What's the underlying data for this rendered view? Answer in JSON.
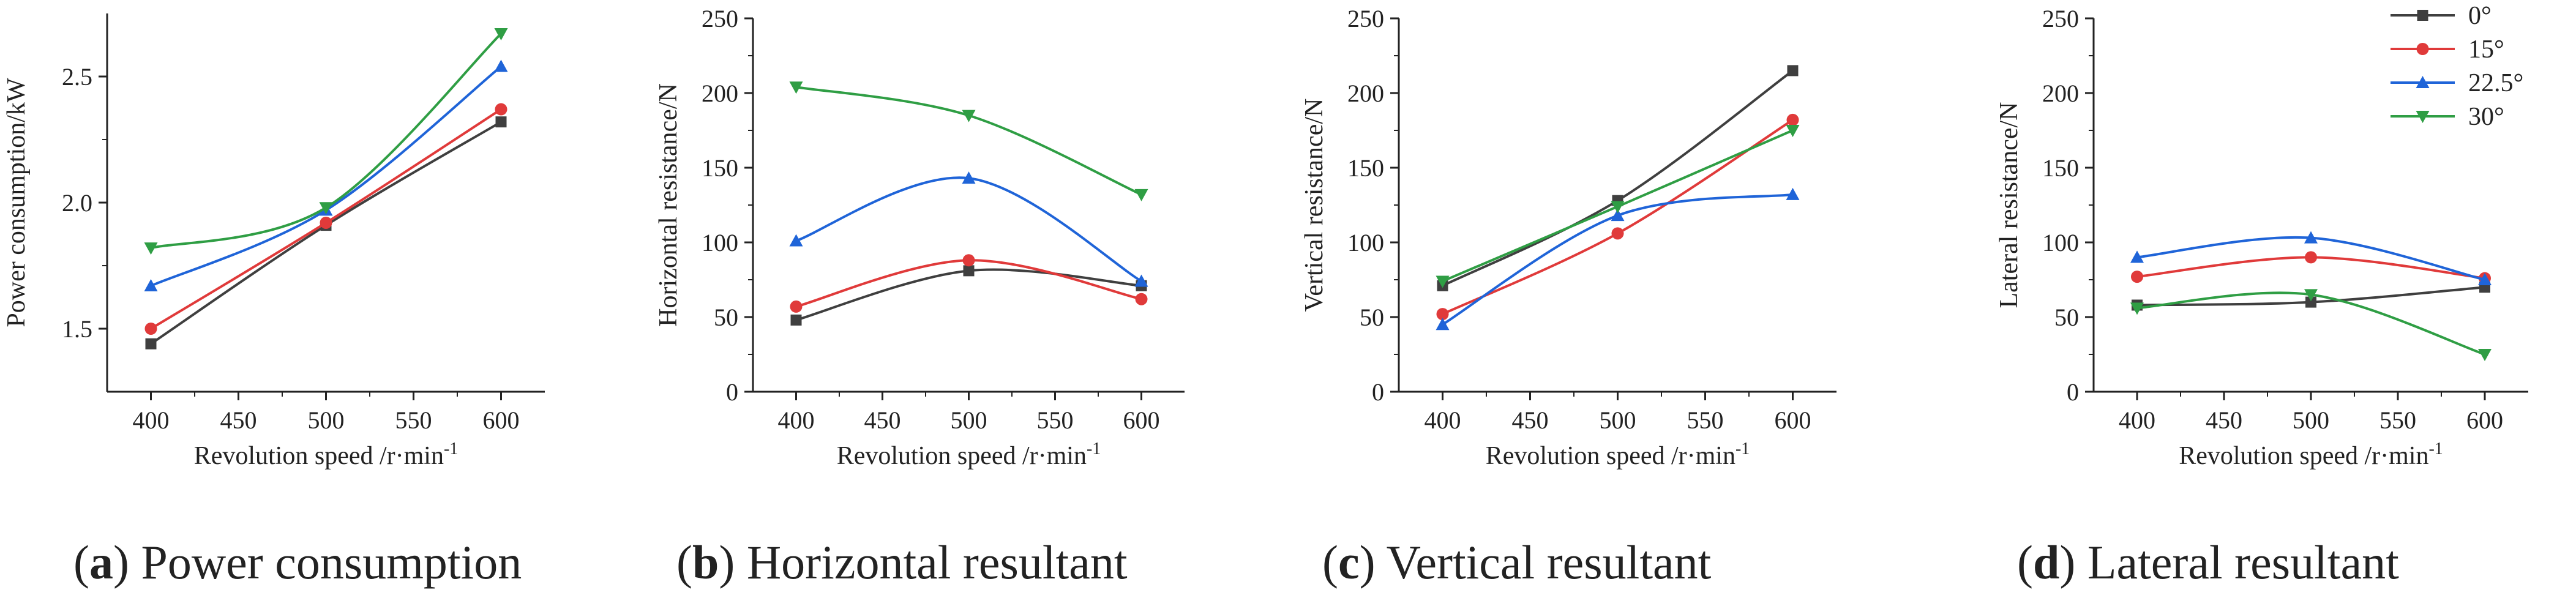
{
  "legend": [
    {
      "label": "0°",
      "color": "#3f3f3f",
      "marker": "square"
    },
    {
      "label": "15°",
      "color": "#e03a3a",
      "marker": "circle"
    },
    {
      "label": "22.5°",
      "color": "#1f64d8",
      "marker": "triangle-up"
    },
    {
      "label": "30°",
      "color": "#2f9e44",
      "marker": "triangle-down"
    }
  ],
  "chart_data": [
    {
      "type": "line",
      "caption_letter": "a",
      "caption_text": " Power consumption",
      "xlabel": "Revolution speed /r·min",
      "xlabel_sup": "-1",
      "ylabel": "Power consumption/kW",
      "x": [
        400,
        500,
        600
      ],
      "xticks": [
        "400",
        "450",
        "500",
        "550",
        "600"
      ],
      "xlim": [
        375,
        625
      ],
      "ylim": [
        1.25,
        2.75
      ],
      "yticks": [
        "1.5",
        "2.0",
        "2.5"
      ],
      "ytick_values": [
        1.5,
        2.0,
        2.5
      ],
      "series": [
        {
          "name": "0°",
          "values": [
            1.44,
            1.91,
            2.32
          ]
        },
        {
          "name": "15°",
          "values": [
            1.5,
            1.92,
            2.37
          ]
        },
        {
          "name": "22.5°",
          "values": [
            1.67,
            1.97,
            2.54
          ]
        },
        {
          "name": "30°",
          "values": [
            1.82,
            1.98,
            2.67
          ]
        }
      ]
    },
    {
      "type": "line",
      "caption_letter": "b",
      "caption_text": " Horizontal resultant",
      "xlabel": "Revolution speed /r·min",
      "xlabel_sup": "-1",
      "ylabel": "Horizontal resistance/N",
      "x": [
        400,
        500,
        600
      ],
      "xticks": [
        "400",
        "450",
        "500",
        "550",
        "600"
      ],
      "xlim": [
        375,
        625
      ],
      "ylim": [
        0,
        250
      ],
      "yticks": [
        "0",
        "50",
        "100",
        "150",
        "200",
        "250"
      ],
      "ytick_values": [
        0,
        50,
        100,
        150,
        200,
        250
      ],
      "series": [
        {
          "name": "0°",
          "values": [
            48,
            81,
            71
          ]
        },
        {
          "name": "15°",
          "values": [
            57,
            88,
            62
          ]
        },
        {
          "name": "22.5°",
          "values": [
            101,
            143,
            74
          ]
        },
        {
          "name": "30°",
          "values": [
            204,
            185,
            132
          ]
        }
      ]
    },
    {
      "type": "line",
      "caption_letter": "c",
      "caption_text": " Vertical resultant",
      "xlabel": "Revolution speed /r·min",
      "xlabel_sup": "-1",
      "ylabel": "Vertical resistance/N",
      "x": [
        400,
        500,
        600
      ],
      "xticks": [
        "400",
        "450",
        "500",
        "550",
        "600"
      ],
      "xlim": [
        375,
        625
      ],
      "ylim": [
        0,
        250
      ],
      "yticks": [
        "0",
        "50",
        "100",
        "150",
        "200",
        "250"
      ],
      "ytick_values": [
        0,
        50,
        100,
        150,
        200,
        250
      ],
      "series": [
        {
          "name": "0°",
          "values": [
            71,
            128,
            215
          ]
        },
        {
          "name": "15°",
          "values": [
            52,
            106,
            182
          ]
        },
        {
          "name": "22.5°",
          "values": [
            45,
            118,
            132
          ]
        },
        {
          "name": "30°",
          "values": [
            74,
            124,
            175
          ]
        }
      ]
    },
    {
      "type": "line",
      "caption_letter": "d",
      "caption_text": " Lateral resultant",
      "xlabel": "Revolution speed /r·min",
      "xlabel_sup": "-1",
      "ylabel": "Lateral resistance/N",
      "x": [
        400,
        500,
        600
      ],
      "xticks": [
        "400",
        "450",
        "500",
        "550",
        "600"
      ],
      "xlim": [
        375,
        625
      ],
      "ylim": [
        0,
        250
      ],
      "yticks": [
        "0",
        "50",
        "100",
        "150",
        "200",
        "250"
      ],
      "ytick_values": [
        0,
        50,
        100,
        150,
        200,
        250
      ],
      "series": [
        {
          "name": "0°",
          "values": [
            58,
            60,
            70
          ]
        },
        {
          "name": "15°",
          "values": [
            77,
            90,
            76
          ]
        },
        {
          "name": "22.5°",
          "values": [
            90,
            103,
            75
          ]
        },
        {
          "name": "30°",
          "values": [
            56,
            65,
            25
          ]
        }
      ]
    }
  ]
}
